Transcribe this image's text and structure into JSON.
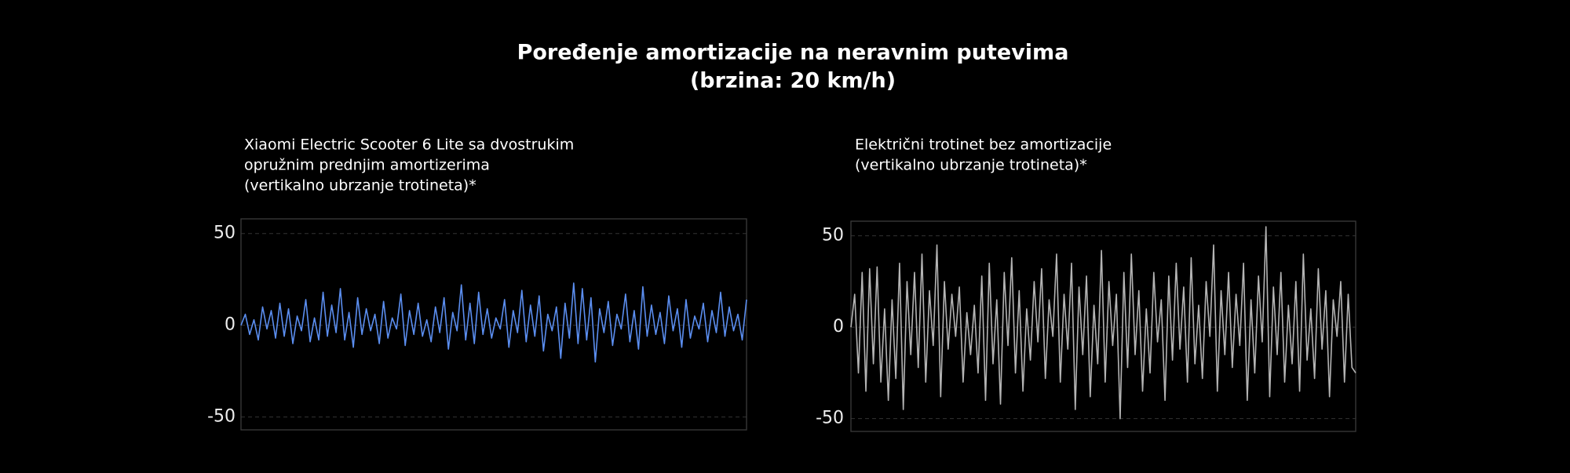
{
  "title": [
    "Poređenje amortizacije na neravnim putevima",
    "(brzina: 20 km/h)"
  ],
  "chart_data": [
    {
      "type": "line",
      "title": [
        "Xiaomi Electric Scooter 6 Lite sa dvostrukim",
        "opružnim prednjim amortizerima",
        "(vertikalno ubrzanje trotineta)*"
      ],
      "ylim": [
        -57,
        58
      ],
      "yticks": [
        -50,
        0,
        50
      ],
      "grid": true,
      "series": [
        {
          "color": "#5b8ef0",
          "values": [
            0,
            6,
            -5,
            3,
            -8,
            10,
            -2,
            8,
            -7,
            12,
            -6,
            9,
            -10,
            5,
            -3,
            14,
            -9,
            4,
            -8,
            18,
            -6,
            11,
            -4,
            20,
            -8,
            7,
            -12,
            15,
            -5,
            9,
            -3,
            6,
            -10,
            13,
            -7,
            4,
            -2,
            17,
            -11,
            8,
            -5,
            12,
            -6,
            3,
            -9,
            10,
            -4,
            15,
            -13,
            7,
            -3,
            22,
            -8,
            12,
            -10,
            18,
            -5,
            9,
            -7,
            4,
            -2,
            14,
            -12,
            8,
            -4,
            19,
            -9,
            11,
            -6,
            16,
            -14,
            6,
            -3,
            10,
            -18,
            12,
            -7,
            23,
            -10,
            20,
            -8,
            15,
            -20,
            9,
            -4,
            13,
            -11,
            6,
            -2,
            17,
            -9,
            8,
            -13,
            21,
            -6,
            11,
            -5,
            7,
            -10,
            16,
            -3,
            9,
            -12,
            14,
            -7,
            5,
            -2,
            12,
            -9,
            8,
            -4,
            18,
            -6,
            10,
            -3,
            6,
            -8,
            14
          ]
        }
      ]
    },
    {
      "type": "line",
      "title": [
        "Električni trotinet bez amortizacije",
        "(vertikalno ubrzanje trotineta)*"
      ],
      "ylim": [
        -57,
        58
      ],
      "yticks": [
        -50,
        0,
        50
      ],
      "grid": true,
      "series": [
        {
          "color": "#b4b4b4",
          "values": [
            0,
            18,
            -25,
            30,
            -35,
            32,
            -20,
            33,
            -30,
            10,
            -40,
            15,
            -28,
            35,
            -45,
            25,
            -15,
            30,
            -22,
            40,
            -30,
            20,
            -10,
            45,
            -38,
            25,
            -12,
            18,
            -5,
            22,
            -30,
            8,
            -15,
            12,
            -25,
            28,
            -40,
            35,
            -20,
            15,
            -42,
            30,
            -10,
            38,
            -25,
            20,
            -35,
            10,
            -18,
            25,
            -8,
            32,
            -28,
            15,
            -5,
            40,
            -30,
            18,
            -12,
            35,
            -45,
            22,
            -15,
            28,
            -38,
            12,
            -20,
            42,
            -30,
            25,
            -10,
            18,
            -50,
            30,
            -22,
            40,
            -15,
            20,
            -35,
            10,
            -25,
            30,
            -8,
            15,
            -40,
            28,
            -18,
            35,
            -12,
            22,
            -30,
            38,
            -20,
            12,
            -28,
            25,
            -5,
            45,
            -35,
            20,
            -15,
            30,
            -22,
            18,
            -10,
            35,
            -40,
            15,
            -25,
            28,
            -8,
            55,
            -38,
            22,
            -15,
            30,
            -30,
            12,
            -20,
            25,
            -35,
            40,
            -18,
            10,
            -28,
            32,
            -12,
            20,
            -38,
            15,
            -5,
            25,
            -30,
            18,
            -22,
            -25
          ]
        }
      ]
    }
  ]
}
